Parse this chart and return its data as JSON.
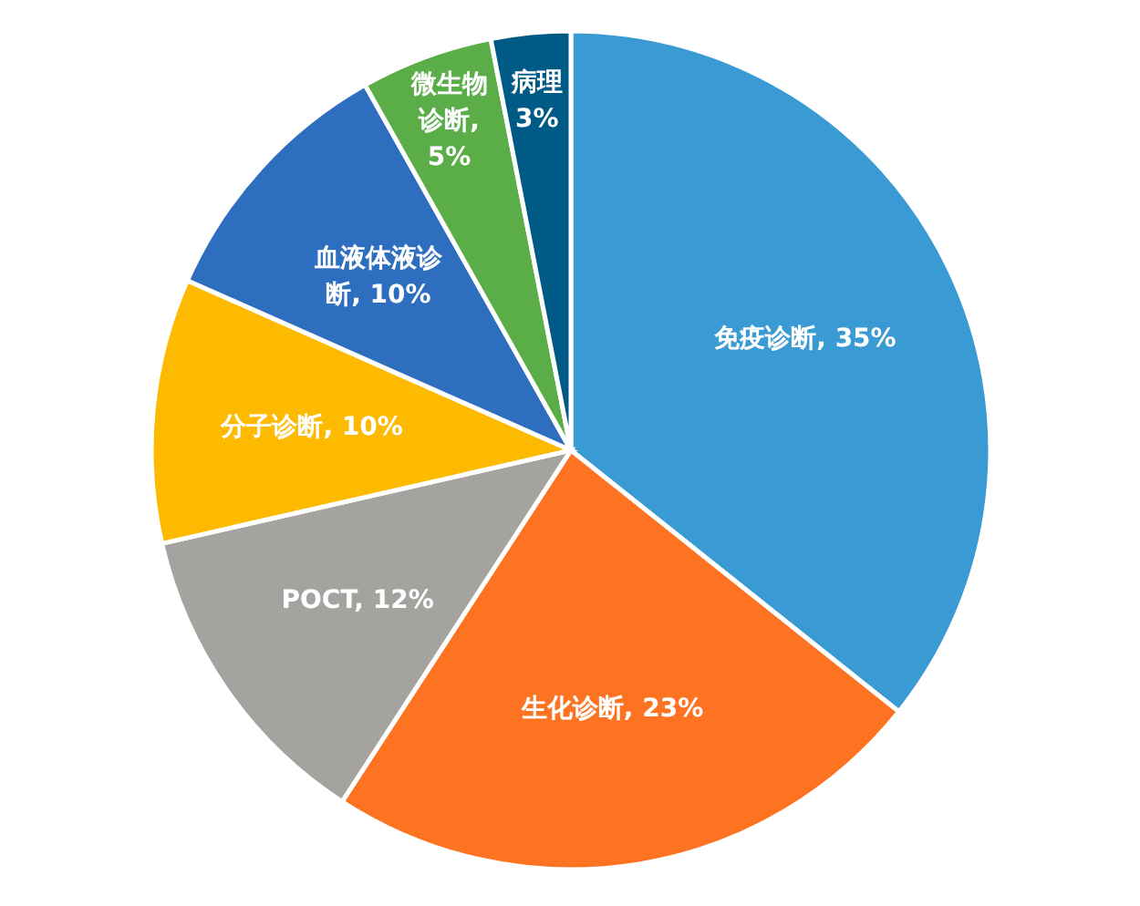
{
  "chart_data": {
    "type": "pie",
    "categories": [
      "免疫诊断",
      "生化诊断",
      "POCT",
      "分子诊断",
      "血液体液诊断",
      "微生物诊断",
      "病理"
    ],
    "values": [
      35,
      23,
      12,
      10,
      10,
      5,
      3
    ],
    "colors": [
      "#3a9ad4",
      "#fd7322",
      "#a5a39f",
      "#fdba00",
      "#2e6ebf",
      "#5aad47",
      "#005a86"
    ],
    "value_labels": [
      ", 35%",
      ", 23%",
      ", 12%",
      ", 10%",
      ", 10%",
      ", 5%",
      "3%"
    ]
  }
}
